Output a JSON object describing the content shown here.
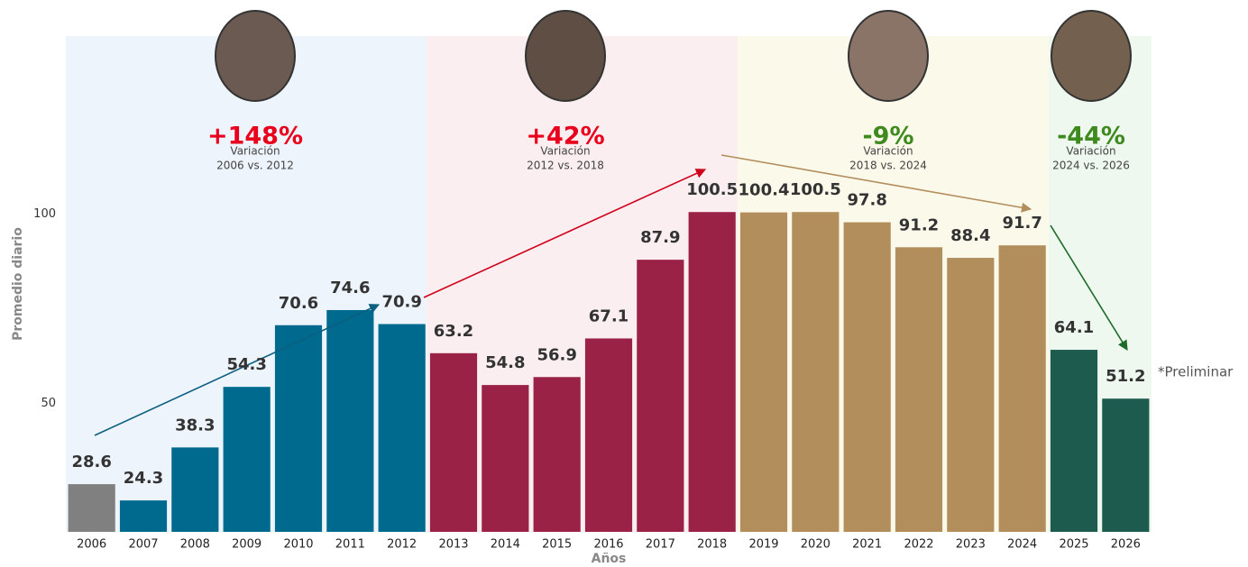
{
  "chart_data": {
    "type": "bar",
    "categories": [
      "2006",
      "2007",
      "2008",
      "2009",
      "2010",
      "2011",
      "2012",
      "2013",
      "2014",
      "2015",
      "2016",
      "2017",
      "2018",
      "2019",
      "2020",
      "2021",
      "2022",
      "2023",
      "2024",
      "2025",
      "2026"
    ],
    "values": [
      28.6,
      24.3,
      38.3,
      54.3,
      70.6,
      74.6,
      70.9,
      63.2,
      54.8,
      56.9,
      67.1,
      87.9,
      100.5,
      100.4,
      100.5,
      97.8,
      91.2,
      88.4,
      91.7,
      64.1,
      51.2
    ],
    "colors": [
      "#808080",
      "#006a8e",
      "#006a8e",
      "#006a8e",
      "#006a8e",
      "#006a8e",
      "#006a8e",
      "#9b2247",
      "#9b2247",
      "#9b2247",
      "#9b2247",
      "#9b2247",
      "#9b2247",
      "#b38e5d",
      "#b38e5d",
      "#b38e5d",
      "#b38e5d",
      "#b38e5d",
      "#b38e5d",
      "#1e5b4f",
      "#1e5b4f"
    ],
    "ylim": [
      16,
      147
    ],
    "yticks": [
      50,
      100
    ],
    "grid": false,
    "y_label": "Promedio diario",
    "x_label": "Años",
    "note": "*Preliminar",
    "periods": [
      {
        "change": "+148%",
        "label": "Variación",
        "range": "2006 vs. 2012",
        "color": "#e8001c"
      },
      {
        "change": "+42%",
        "label": "Variación",
        "range": "2012 vs. 2018",
        "color": "#e8001c"
      },
      {
        "change": "-9%",
        "label": "Variación",
        "range": "2018 vs. 2024",
        "color": "#3f8a1f"
      },
      {
        "change": "-44%",
        "label": "Variación",
        "range": "2024 vs. 2026",
        "color": "#3f8a1f"
      }
    ]
  }
}
